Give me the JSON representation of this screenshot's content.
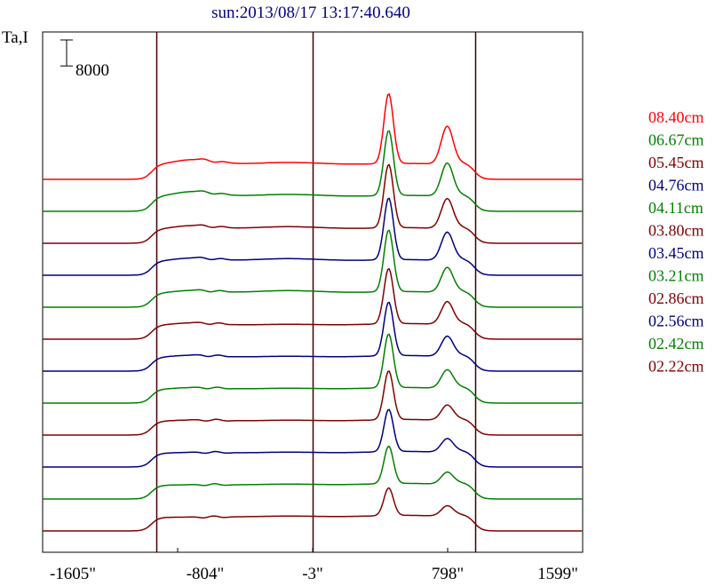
{
  "chart_data": {
    "type": "line",
    "title": "sun:2013/08/17 13:17:40.640",
    "ylabel": "Ta,I",
    "scale_bar_label": "8000",
    "scale_bar_value": 8000,
    "xlim": [
      -1605,
      1599
    ],
    "x_ticks": [
      {
        "value": -1605,
        "label": "-1605\""
      },
      {
        "value": -804,
        "label": "-804\""
      },
      {
        "value": -3,
        "label": "-3\""
      },
      {
        "value": 798,
        "label": "798\""
      },
      {
        "value": 1599,
        "label": "1599\""
      }
    ],
    "vertical_lines": [
      -930,
      -3,
      960
    ],
    "grid": false,
    "legend_position": "right",
    "series": [
      {
        "name": "08.40cm",
        "color": "#ff0000",
        "offset": 68,
        "limb": 4300,
        "peak": 21500,
        "peak2": 11500
      },
      {
        "name": "06.67cm",
        "color": "#008000",
        "offset": 62,
        "limb": 4300,
        "peak": 20000,
        "peak2": 10000
      },
      {
        "name": "05.45cm",
        "color": "#800000",
        "offset": 56,
        "limb": 4200,
        "peak": 19500,
        "peak2": 9000
      },
      {
        "name": "04.76cm",
        "color": "#000080",
        "offset": 50,
        "limb": 4200,
        "peak": 19000,
        "peak2": 8500
      },
      {
        "name": "04.11cm",
        "color": "#008000",
        "offset": 44,
        "limb": 4200,
        "peak": 19000,
        "peak2": 7500
      },
      {
        "name": "03.80cm",
        "color": "#800000",
        "offset": 38,
        "limb": 4200,
        "peak": 17000,
        "peak2": 6800
      },
      {
        "name": "03.45cm",
        "color": "#000080",
        "offset": 32,
        "limb": 4200,
        "peak": 16500,
        "peak2": 6000
      },
      {
        "name": "03.21cm",
        "color": "#008000",
        "offset": 26,
        "limb": 4200,
        "peak": 16500,
        "peak2": 5500
      },
      {
        "name": "02.86cm",
        "color": "#800000",
        "offset": 20,
        "limb": 4200,
        "peak": 15000,
        "peak2": 4500
      },
      {
        "name": "02.56cm",
        "color": "#000080",
        "offset": 14,
        "limb": 4200,
        "peak": 13000,
        "peak2": 4000
      },
      {
        "name": "02.42cm",
        "color": "#008000",
        "offset": 8,
        "limb": 4200,
        "peak": 11500,
        "peak2": 3500
      },
      {
        "name": "02.22cm",
        "color": "#800000",
        "offset": 2,
        "limb": 4200,
        "peak": 8500,
        "peak2": 3000
      }
    ]
  }
}
